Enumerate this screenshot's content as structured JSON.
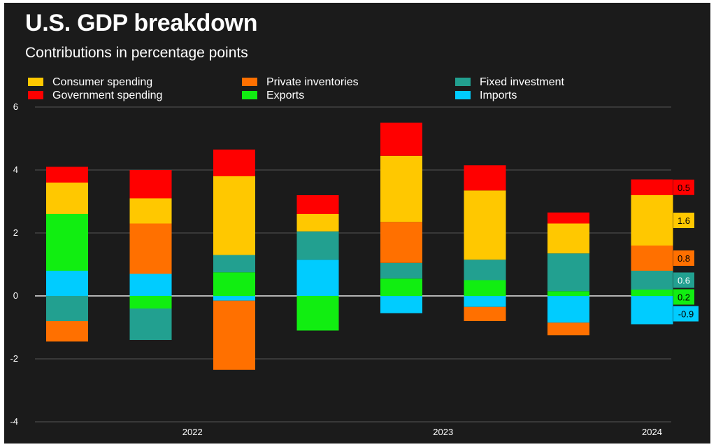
{
  "header": {
    "title": "U.S. GDP breakdown",
    "subtitle": "Contributions in percentage points"
  },
  "chart_data": {
    "type": "bar",
    "stacked": true,
    "title": "U.S. GDP breakdown",
    "subtitle": "Contributions in percentage points",
    "xlabel": "",
    "ylabel": "",
    "ylim": [
      -4,
      6
    ],
    "yticks": [
      6,
      4,
      2,
      0,
      -2,
      -4
    ],
    "grid": true,
    "legend_position": "top",
    "year_labels": [
      {
        "label": "2022",
        "bar_index": 1.5
      },
      {
        "label": "2023",
        "bar_index": 4.5
      },
      {
        "label": "2024",
        "bar_index": 7.0
      }
    ],
    "categories": [
      "",
      "",
      "",
      "",
      "",
      "",
      "",
      ""
    ],
    "series": [
      {
        "name": "Consumer spending",
        "color": "#ffc800",
        "values": [
          1.0,
          0.8,
          2.5,
          0.55,
          2.1,
          2.2,
          0.95,
          1.6
        ]
      },
      {
        "name": "Government spending",
        "color": "#ff0000",
        "values": [
          0.5,
          0.9,
          0.85,
          0.6,
          1.05,
          0.8,
          0.35,
          0.5
        ]
      },
      {
        "name": "Private inventories",
        "color": "#ff7000",
        "values": [
          -0.65,
          1.6,
          -2.2,
          0,
          1.3,
          -0.45,
          -0.4,
          0.8
        ]
      },
      {
        "name": "Exports",
        "color": "#11ee11",
        "values": [
          1.8,
          -0.4,
          0.75,
          -1.1,
          0.55,
          0.5,
          0.15,
          0.2
        ]
      },
      {
        "name": "Fixed investment",
        "color": "#22a090",
        "values": [
          -0.8,
          -1.0,
          0.55,
          0.9,
          0.5,
          0.65,
          1.2,
          0.6
        ]
      },
      {
        "name": "Imports",
        "color": "#00ccff",
        "values": [
          0.8,
          0.7,
          -0.15,
          1.15,
          -0.55,
          -0.35,
          -0.85,
          -0.9
        ]
      }
    ],
    "stack_order": [
      "Imports",
      "Exports",
      "Fixed investment",
      "Private inventories",
      "Consumer spending",
      "Government spending"
    ],
    "end_labels": [
      {
        "text": "0.5",
        "series": "Government spending",
        "color": "#ff0000",
        "text_color": "#000000"
      },
      {
        "text": "1.6",
        "series": "Consumer spending",
        "color": "#ffc800",
        "text_color": "#000000"
      },
      {
        "text": "0.6",
        "series": "Fixed investment",
        "color": "#22a090",
        "text_color": "#ffffff"
      },
      {
        "text": "0.2",
        "series": "Exports",
        "color": "#11ee11",
        "text_color": "#000000"
      },
      {
        "text": "0.8",
        "series": "Private inventories",
        "color": "#ff7000",
        "text_color": "#000000"
      },
      {
        "text": "-0.9",
        "series": "Imports",
        "color": "#00ccff",
        "text_color": "#000000"
      }
    ],
    "legend_order": [
      "Consumer spending",
      "Government spending",
      "Private inventories",
      "Exports",
      "Fixed investment",
      "Imports"
    ]
  }
}
